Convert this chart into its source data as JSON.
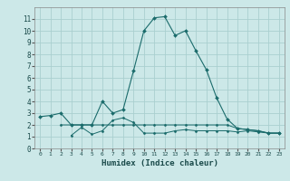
{
  "xlabel": "Humidex (Indice chaleur)",
  "bg_color": "#cce8e8",
  "grid_color": "#aacfcf",
  "line_color": "#1a6b6b",
  "xlim": [
    -0.5,
    23.5
  ],
  "ylim": [
    0,
    12
  ],
  "xticks": [
    0,
    1,
    2,
    3,
    4,
    5,
    6,
    7,
    8,
    9,
    10,
    11,
    12,
    13,
    14,
    15,
    16,
    17,
    18,
    19,
    20,
    21,
    22,
    23
  ],
  "yticks": [
    0,
    1,
    2,
    3,
    4,
    5,
    6,
    7,
    8,
    9,
    10,
    11
  ],
  "line1_x": [
    0,
    1,
    2,
    3,
    4,
    5,
    6,
    7,
    8,
    9,
    10,
    11,
    12,
    13,
    14,
    15,
    16,
    17,
    18,
    19,
    20,
    21,
    22,
    23
  ],
  "line1_y": [
    2.7,
    2.8,
    3.0,
    2.0,
    2.0,
    2.0,
    4.0,
    3.0,
    3.3,
    6.6,
    10.0,
    11.1,
    11.2,
    9.6,
    10.0,
    8.3,
    6.7,
    4.3,
    2.5,
    1.7,
    1.6,
    1.5,
    1.3,
    1.3
  ],
  "line2_x": [
    2,
    3,
    4,
    5,
    6,
    7,
    8,
    9,
    10,
    11,
    12,
    13,
    14,
    15,
    16,
    17,
    18,
    19,
    20,
    21,
    22,
    23
  ],
  "line2_y": [
    2.0,
    2.0,
    2.0,
    2.0,
    2.0,
    2.0,
    2.0,
    2.0,
    2.0,
    2.0,
    2.0,
    2.0,
    2.0,
    2.0,
    2.0,
    2.0,
    2.0,
    1.7,
    1.6,
    1.5,
    1.3,
    1.3
  ],
  "line3_x": [
    3,
    4,
    5,
    6,
    7,
    8,
    9,
    10,
    11,
    12,
    13,
    14,
    15,
    16,
    17,
    18,
    19,
    20,
    21,
    22,
    23
  ],
  "line3_y": [
    1.1,
    1.8,
    1.2,
    1.5,
    2.4,
    2.6,
    2.2,
    1.3,
    1.3,
    1.3,
    1.5,
    1.6,
    1.5,
    1.5,
    1.5,
    1.5,
    1.4,
    1.5,
    1.4,
    1.3,
    1.3
  ]
}
